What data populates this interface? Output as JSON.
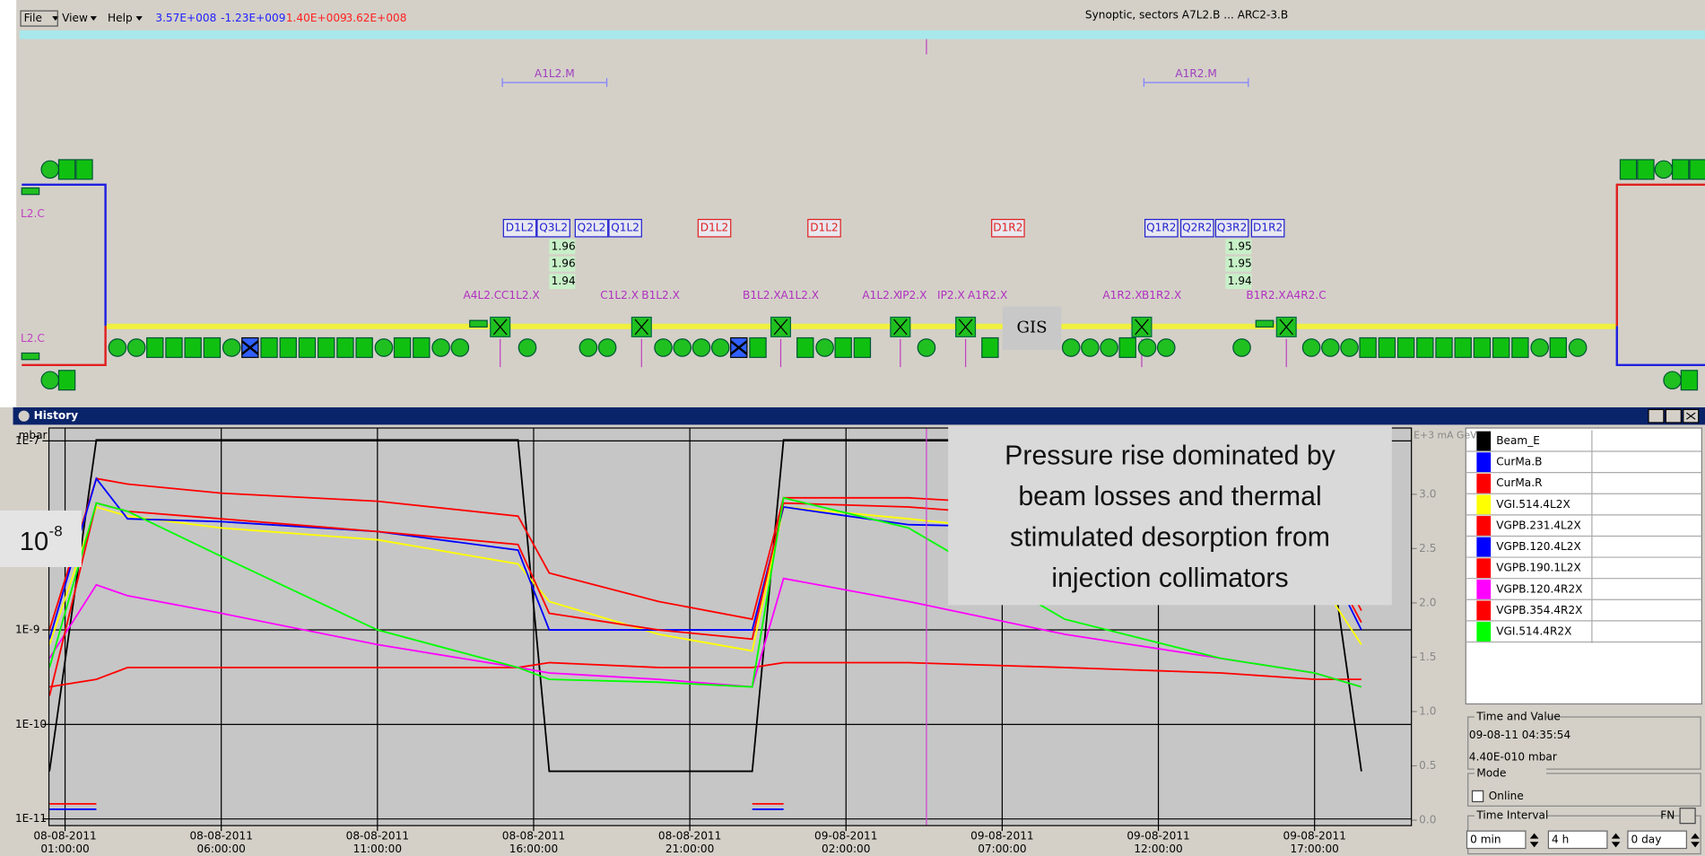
{
  "menu": {
    "items": [
      "File",
      "View",
      "Help"
    ]
  },
  "readouts": [
    {
      "text": "3.57E+008",
      "color": "#2020ff"
    },
    {
      "text": "-1.23E+009",
      "color": "#2020ff"
    },
    {
      "text": "1.40E+009",
      "color": "#ff2020"
    },
    {
      "text": "3.62E+008",
      "color": "#ff2020"
    }
  ],
  "synoptic": {
    "title": "Synoptic, sectors A7L2.B ... ARC2-3.B",
    "sector_labels": [
      "A1L2.M",
      "A1R2.M"
    ],
    "side_labels": [
      "L2.C",
      "L2.C"
    ],
    "boxes": [
      {
        "label": "D1L2",
        "color": "#2020d0"
      },
      {
        "label": "Q3L2",
        "color": "#2020d0"
      },
      {
        "label": "Q2L2",
        "color": "#2020d0"
      },
      {
        "label": "Q1L2",
        "color": "#2020d0"
      },
      {
        "label": "D1L2",
        "color": "#e02020"
      },
      {
        "label": "D1L2",
        "color": "#e02020"
      },
      {
        "label": "D1R2",
        "color": "#e02020"
      },
      {
        "label": "Q1R2",
        "color": "#2020d0"
      },
      {
        "label": "Q2R2",
        "color": "#2020d0"
      },
      {
        "label": "Q3R2",
        "color": "#2020d0"
      },
      {
        "label": "D1R2",
        "color": "#2020d0"
      }
    ],
    "readings": [
      1.96,
      1.96,
      1.94,
      1.95,
      1.95,
      1.94
    ],
    "element_labels": [
      "A4L2.C",
      "C1L2.X",
      "C1L2.X",
      "B1L2.X",
      "B1L2.X",
      "A1L2.X",
      "A1L2.X",
      "IP2.X",
      "IP2.X",
      "A1R2.X",
      "A1R2.X",
      "B1R2.X",
      "B1R2.X",
      "A4R2.C"
    ],
    "gis": "GIS"
  },
  "history": {
    "title": "History",
    "time_and_value": {
      "title": "Time and Value",
      "time": "09-08-11 04:35:54",
      "value": "4.40E-010 mbar"
    },
    "mode": {
      "title": "Mode",
      "option": "Online"
    },
    "time_interval": {
      "title": "Time Interval",
      "button": "FN",
      "fields": [
        "0 min",
        "4 h",
        "0 day"
      ]
    }
  },
  "chart_data": {
    "type": "line",
    "y_label": "mbar",
    "y2_label": "E+3 mA GeV",
    "log_y": true,
    "grid": true,
    "annotation": {
      "lines": [
        "Pressure rise dominated by",
        "beam losses and thermal",
        "stimulated desorption from",
        "injection collimators"
      ]
    },
    "exponent_label": {
      "base": "10",
      "exponent": "-8"
    },
    "xlim": [
      "2011-08-08T00:29:00",
      "2011-08-09T20:06:00"
    ],
    "xticks": [
      {
        "value": "2011-08-08T01:00:00",
        "date": "08-08-2011",
        "time": "01:00:00"
      },
      {
        "value": "2011-08-08T06:00:00",
        "date": "08-08-2011",
        "time": "06:00:00"
      },
      {
        "value": "2011-08-08T11:00:00",
        "date": "08-08-2011",
        "time": "11:00:00"
      },
      {
        "value": "2011-08-08T16:00:00",
        "date": "08-08-2011",
        "time": "16:00:00"
      },
      {
        "value": "2011-08-08T21:00:00",
        "date": "08-08-2011",
        "time": "21:00:00"
      },
      {
        "value": "2011-08-09T02:00:00",
        "date": "09-08-2011",
        "time": "02:00:00"
      },
      {
        "value": "2011-08-09T07:00:00",
        "date": "09-08-2011",
        "time": "07:00:00"
      },
      {
        "value": "2011-08-09T12:00:00",
        "date": "09-08-2011",
        "time": "12:00:00"
      },
      {
        "value": "2011-08-09T17:00:00",
        "date": "09-08-2011",
        "time": "17:00:00"
      }
    ],
    "ylim": [
      8.5e-12,
      1.37e-07
    ],
    "yticks": [
      {
        "value": 1e-07,
        "label": "1E-7"
      },
      {
        "value": 1e-09,
        "label": "1E-9"
      },
      {
        "value": 1e-10,
        "label": "1E-10"
      },
      {
        "value": 1e-11,
        "label": "1E-11"
      }
    ],
    "y2lim": [
      -0.05,
      3.61
    ],
    "y2ticks": [
      {
        "value": 0,
        "label": "0.0"
      },
      0.5,
      {
        "value": 1,
        "label": "1.0"
      },
      1.5,
      {
        "value": 2,
        "label": "2.0"
      },
      2.5,
      {
        "value": 3,
        "label": "3.0"
      }
    ],
    "x": [
      "2011-08-08T00:30:00",
      "2011-08-08T02:00:00",
      "2011-08-08T03:00:00",
      "2011-08-08T06:00:00",
      "2011-08-08T11:00:00",
      "2011-08-08T15:30:00",
      "2011-08-08T16:30:00",
      "2011-08-08T20:00:00",
      "2011-08-08T23:00:00",
      "2011-08-09T00:00:00",
      "2011-08-09T04:00:00",
      "2011-08-09T09:00:00",
      "2011-08-09T14:00:00",
      "2011-08-09T17:00:00",
      "2011-08-09T18:30:00"
    ],
    "series": [
      {
        "name": "Beam_E",
        "color": "#000000",
        "axis": "y2",
        "values": [
          0.45,
          3.5,
          3.5,
          3.5,
          3.5,
          3.5,
          0.45,
          0.45,
          0.45,
          3.5,
          3.5,
          3.5,
          3.5,
          3.5,
          0.45
        ]
      },
      {
        "name": "CurMa.B",
        "color": "#0000ff",
        "axis": "y2",
        "values": [
          0.1,
          0.1,
          null,
          null,
          null,
          null,
          null,
          null,
          0.1,
          0.1,
          null,
          null,
          null,
          null,
          null
        ]
      },
      {
        "name": "CurMa.R",
        "color": "#ff0000",
        "axis": "y2",
        "values": [
          0.15,
          0.15,
          null,
          null,
          null,
          null,
          null,
          null,
          0.15,
          0.15,
          null,
          null,
          null,
          null,
          null
        ]
      },
      {
        "name": "VGI.514.4L2X",
        "color": "#ffff00",
        "values": [
          7e-10,
          2e-08,
          1.6e-08,
          1.2e-08,
          9e-09,
          5e-09,
          2e-09,
          9e-10,
          6e-10,
          2e-08,
          1.5e-08,
          1e-08,
          6e-09,
          4e-09,
          7e-10
        ]
      },
      {
        "name": "VGPB.231.4L2X",
        "color": "#ff0000",
        "values": [
          1e-09,
          4e-08,
          3.5e-08,
          2.8e-08,
          2.3e-08,
          1.6e-08,
          4e-09,
          2e-09,
          1.3e-09,
          2.5e-08,
          2.5e-08,
          2e-08,
          1.8e-08,
          1.5e-08,
          1.6e-09
        ]
      },
      {
        "name": "VGPB.120.4L2X",
        "color": "#0000ff",
        "values": [
          8e-10,
          4e-08,
          1.5e-08,
          1.4e-08,
          1.1e-08,
          7e-09,
          1e-09,
          1e-09,
          1e-09,
          2e-08,
          1.3e-08,
          1.2e-08,
          1.1e-08,
          1e-08,
          1e-09
        ]
      },
      {
        "name": "VGPB.190.1L2X",
        "color": "#ff0000",
        "values": [
          2.5e-10,
          3e-10,
          4e-10,
          4e-10,
          4e-10,
          4e-10,
          4.5e-10,
          4e-10,
          4e-10,
          4.5e-10,
          4.5e-10,
          4e-10,
          3.5e-10,
          3e-10,
          3e-10
        ]
      },
      {
        "name": "VGPB.120.4R2X",
        "color": "#ff00ff",
        "values": [
          5e-10,
          3e-09,
          2.3e-09,
          1.5e-09,
          7e-10,
          4e-10,
          3.5e-10,
          3e-10,
          2.5e-10,
          3.5e-09,
          2e-09,
          9e-10,
          5e-10,
          3.5e-10,
          2.5e-10
        ]
      },
      {
        "name": "VGPB.354.4R2X",
        "color": "#ff0000",
        "values": [
          2e-10,
          2.2e-08,
          1.8e-08,
          1.5e-08,
          1.1e-08,
          8e-09,
          1.5e-09,
          1e-09,
          8e-10,
          2.2e-08,
          2e-08,
          1.5e-08,
          1.2e-08,
          1e-08,
          1.2e-09
        ]
      },
      {
        "name": "VGI.514.4R2X",
        "color": "#00ff00",
        "values": [
          4e-10,
          2.2e-08,
          1.8e-08,
          6e-09,
          1e-09,
          4e-10,
          3e-10,
          2.8e-10,
          2.5e-10,
          2.5e-08,
          1.2e-08,
          1.3e-09,
          5e-10,
          3.5e-10,
          2.5e-10
        ]
      }
    ]
  }
}
